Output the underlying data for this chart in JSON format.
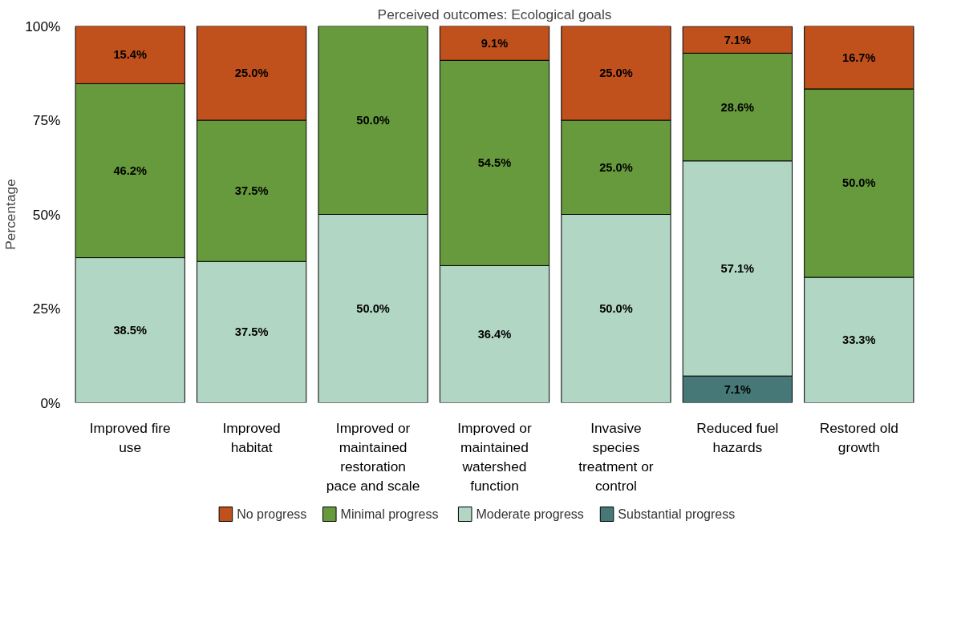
{
  "chart_data": {
    "type": "bar",
    "title": "Perceived outcomes: Ecological goals",
    "ylabel": "Percentage",
    "stacked": true,
    "legend": "bottom",
    "grid": false,
    "categories": [
      "Improved fire use",
      "Improved habitat",
      "Improved or maintained restoration pace and scale",
      "Improved or maintained watershed function",
      "Invasive species treatment or control",
      "Reduced fuel hazards",
      "Restored old growth"
    ],
    "ylim": [
      0,
      100
    ],
    "yticks": [
      {
        "value": 0,
        "label": "0%"
      },
      {
        "value": 25,
        "label": "25%"
      },
      {
        "value": 50,
        "label": "50%"
      },
      {
        "value": 75,
        "label": "75%"
      },
      {
        "value": 100,
        "label": "100%"
      }
    ],
    "series": [
      {
        "name": "Substantial progress",
        "color": "#467878",
        "values": [
          null,
          null,
          null,
          null,
          null,
          7.1,
          null
        ],
        "value_labels": [
          null,
          null,
          null,
          null,
          null,
          "7.1%",
          null
        ]
      },
      {
        "name": "Moderate progress",
        "color": "#b2d6c4",
        "values": [
          38.5,
          37.5,
          50.0,
          36.4,
          50.0,
          57.1,
          33.3
        ],
        "value_labels": [
          "38.5%",
          "37.5%",
          "50.0%",
          "36.4%",
          "50.0%",
          "57.1%",
          "33.3%"
        ]
      },
      {
        "name": "Minimal progress",
        "color": "#669a3c",
        "values": [
          46.2,
          37.5,
          50.0,
          54.5,
          25.0,
          28.6,
          50.0
        ],
        "value_labels": [
          "46.2%",
          "37.5%",
          "50.0%",
          "54.5%",
          "25.0%",
          "28.6%",
          "50.0%"
        ]
      },
      {
        "name": "No progress",
        "color": "#c0501c",
        "values": [
          15.4,
          25.0,
          null,
          9.1,
          25.0,
          7.1,
          16.7
        ],
        "value_labels": [
          "15.4%",
          "25.0%",
          null,
          "9.1%",
          "25.0%",
          "7.1%",
          "16.7%"
        ]
      }
    ]
  }
}
